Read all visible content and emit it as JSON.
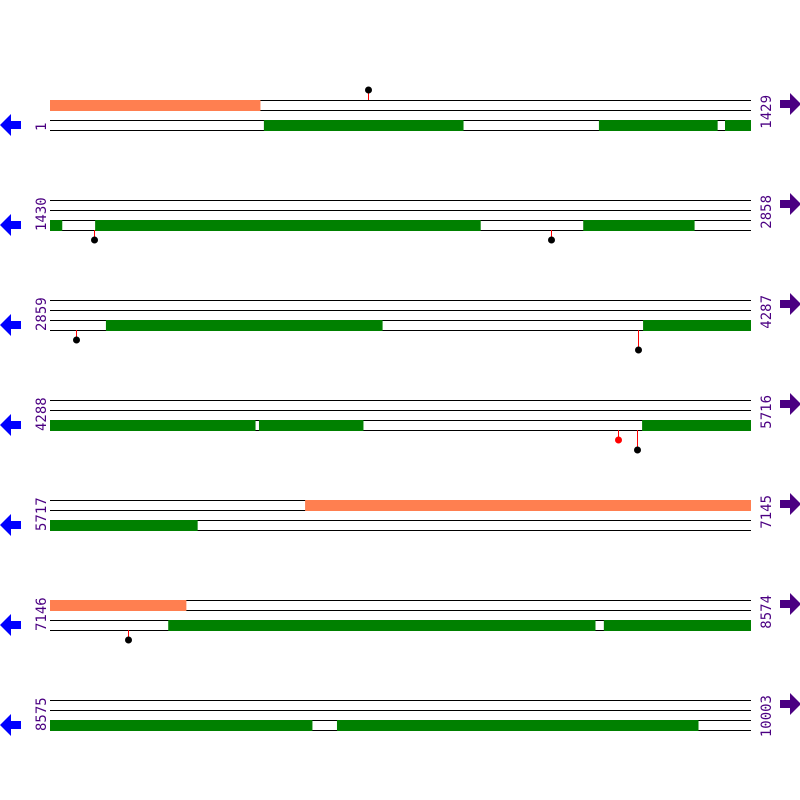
{
  "colors": {
    "gene": "#008000",
    "region": "#ff7f50",
    "track_line": "#000000",
    "label": "#4b0082",
    "reverse_arrow": "#0000ff",
    "forward_arrow": "#4b0082",
    "marker_stem": "#ff0000",
    "marker_black": "#000000",
    "marker_red": "#ff0000"
  },
  "icons": {
    "left": "arrow-left-icon",
    "right": "arrow-right-icon"
  },
  "rows": [
    {
      "start": 1,
      "end": 1429,
      "regions": [
        [
          1,
          429
        ]
      ],
      "genes": [
        [
          437,
          843
        ],
        [
          1120,
          1361
        ],
        [
          1377,
          1429
        ]
      ],
      "markers": [
        {
          "pos": 649,
          "side": "above",
          "color": "black",
          "len": 1
        }
      ]
    },
    {
      "start": 1430,
      "end": 2858,
      "regions": [],
      "genes": [
        [
          1430,
          1454
        ],
        [
          1522,
          2307
        ],
        [
          2517,
          2743
        ]
      ],
      "markers": [
        {
          "pos": 1520,
          "side": "below",
          "color": "black",
          "len": 1
        },
        {
          "pos": 2451,
          "side": "below",
          "color": "black",
          "len": 1
        }
      ]
    },
    {
      "start": 2859,
      "end": 4287,
      "regions": [],
      "genes": [
        [
          2973,
          3536
        ],
        [
          4068,
          4287
        ]
      ],
      "markers": [
        {
          "pos": 2912,
          "side": "below",
          "color": "black",
          "len": 1
        },
        {
          "pos": 4058,
          "side": "below",
          "color": "black",
          "len": 2
        }
      ]
    },
    {
      "start": 4288,
      "end": 5716,
      "regions": [],
      "genes": [
        [
          4288,
          4706
        ],
        [
          4714,
          4926
        ],
        [
          5495,
          5716
        ]
      ],
      "markers": [
        {
          "pos": 5446,
          "side": "below",
          "color": "red",
          "len": 1
        },
        {
          "pos": 5485,
          "side": "below",
          "color": "black",
          "len": 2
        }
      ]
    },
    {
      "start": 5717,
      "end": 7145,
      "regions": [
        [
          6237,
          7145
        ]
      ],
      "genes": [
        [
          5717,
          6017
        ]
      ],
      "markers": []
    },
    {
      "start": 7146,
      "end": 8574,
      "regions": [
        [
          7146,
          7423
        ]
      ],
      "genes": [
        [
          7387,
          8257
        ],
        [
          8275,
          8574
        ]
      ],
      "markers": [
        {
          "pos": 7305,
          "side": "below",
          "color": "black",
          "len": 1
        }
      ]
    },
    {
      "start": 8575,
      "end": 10003,
      "regions": [],
      "genes": [
        [
          8575,
          9109
        ],
        [
          9160,
          9896
        ]
      ],
      "markers": []
    }
  ]
}
